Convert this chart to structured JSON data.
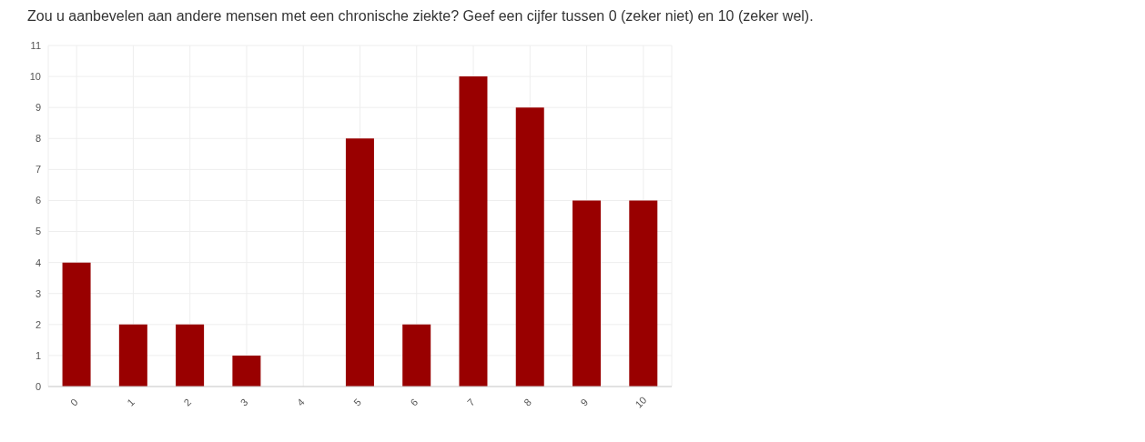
{
  "chart_data": {
    "type": "bar",
    "title": "Zou u aanbevelen aan andere mensen met een chronische ziekte? Geef een cijfer tussen 0 (zeker niet) en 10 (zeker wel).",
    "categories": [
      "0",
      "1",
      "2",
      "3",
      "4",
      "5",
      "6",
      "7",
      "8",
      "9",
      "10"
    ],
    "values": [
      4,
      2,
      2,
      1,
      0,
      8,
      2,
      10,
      9,
      6,
      6
    ],
    "color": "#990000",
    "ylim": [
      0,
      11
    ],
    "yticks": [
      0,
      1,
      2,
      3,
      4,
      5,
      6,
      7,
      8,
      9,
      10,
      11
    ],
    "grid": true
  }
}
